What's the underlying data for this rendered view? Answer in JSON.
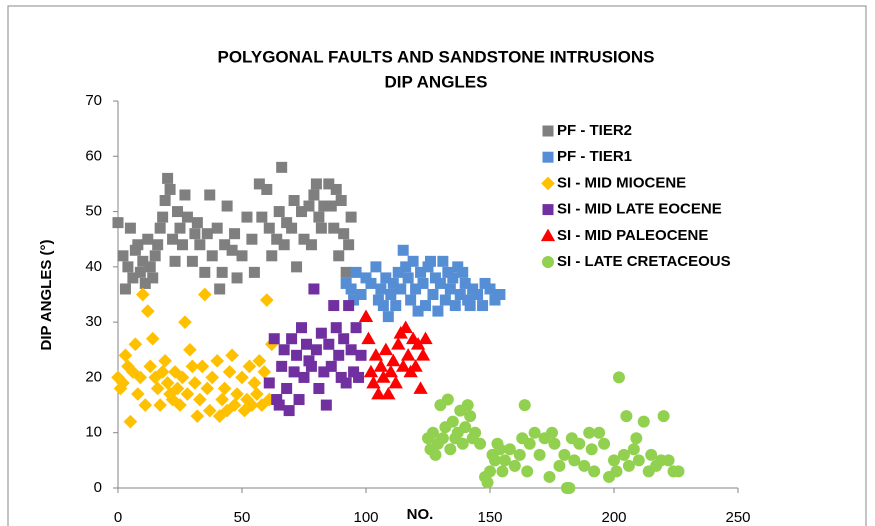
{
  "chart_data": {
    "type": "scatter",
    "title": [
      "POLYGONAL FAULTS AND SANDSTONE INTRUSIONS",
      "DIP ANGLES"
    ],
    "x_label": "NO.",
    "y_label": "DIP ANGLES (°)",
    "xlim": [
      0,
      250
    ],
    "xticks": [
      0,
      50,
      100,
      150,
      200,
      250
    ],
    "ylim": [
      0,
      70
    ],
    "yticks": [
      0,
      10,
      20,
      30,
      40,
      50,
      60,
      70
    ],
    "grid": false,
    "legend": "upper right",
    "series": [
      {
        "name": "PF - TIER2",
        "color": "#7f7f7f",
        "marker": "square",
        "points": [
          [
            0,
            48
          ],
          [
            2,
            42
          ],
          [
            3,
            36
          ],
          [
            4,
            40
          ],
          [
            5,
            47
          ],
          [
            6,
            38
          ],
          [
            7,
            43
          ],
          [
            8,
            44
          ],
          [
            9,
            39
          ],
          [
            10,
            41
          ],
          [
            11,
            37
          ],
          [
            12,
            45
          ],
          [
            13,
            40
          ],
          [
            14,
            38
          ],
          [
            15,
            42
          ],
          [
            16,
            44
          ],
          [
            17,
            47
          ],
          [
            18,
            49
          ],
          [
            19,
            52
          ],
          [
            20,
            56
          ],
          [
            21,
            54
          ],
          [
            22,
            45
          ],
          [
            23,
            41
          ],
          [
            24,
            50
          ],
          [
            25,
            47
          ],
          [
            26,
            44
          ],
          [
            27,
            53
          ],
          [
            28,
            49
          ],
          [
            30,
            41
          ],
          [
            31,
            46
          ],
          [
            32,
            48
          ],
          [
            33,
            44
          ],
          [
            35,
            39
          ],
          [
            36,
            46
          ],
          [
            37,
            53
          ],
          [
            38,
            42
          ],
          [
            40,
            47
          ],
          [
            41,
            36
          ],
          [
            42,
            39
          ],
          [
            43,
            44
          ],
          [
            44,
            51
          ],
          [
            46,
            43
          ],
          [
            47,
            46
          ],
          [
            48,
            38
          ],
          [
            50,
            42
          ],
          [
            52,
            49
          ],
          [
            54,
            45
          ],
          [
            55,
            39
          ],
          [
            57,
            55
          ],
          [
            58,
            49
          ],
          [
            60,
            54
          ],
          [
            61,
            47
          ],
          [
            62,
            42
          ],
          [
            64,
            45
          ],
          [
            65,
            50
          ],
          [
            66,
            58
          ],
          [
            67,
            44
          ],
          [
            68,
            48
          ],
          [
            70,
            47
          ],
          [
            71,
            52
          ],
          [
            72,
            40
          ],
          [
            74,
            50
          ],
          [
            75,
            45
          ],
          [
            77,
            51
          ],
          [
            78,
            44
          ],
          [
            79,
            53
          ],
          [
            80,
            55
          ],
          [
            81,
            49
          ],
          [
            82,
            47
          ],
          [
            83,
            51
          ],
          [
            85,
            55
          ],
          [
            86,
            51
          ],
          [
            87,
            47
          ],
          [
            88,
            54
          ],
          [
            89,
            42
          ],
          [
            90,
            52
          ],
          [
            91,
            46
          ],
          [
            92,
            39
          ],
          [
            93,
            44
          ],
          [
            94,
            49
          ]
        ]
      },
      {
        "name": "PF - TIER1",
        "color": "#558ed5",
        "marker": "square",
        "points": [
          [
            92,
            37
          ],
          [
            94,
            36
          ],
          [
            95,
            34
          ],
          [
            96,
            39
          ],
          [
            98,
            35
          ],
          [
            100,
            38
          ],
          [
            102,
            37
          ],
          [
            104,
            40
          ],
          [
            105,
            34
          ],
          [
            106,
            36
          ],
          [
            107,
            33
          ],
          [
            108,
            38
          ],
          [
            109,
            31
          ],
          [
            110,
            35
          ],
          [
            111,
            37
          ],
          [
            112,
            33
          ],
          [
            113,
            39
          ],
          [
            114,
            36
          ],
          [
            115,
            43
          ],
          [
            116,
            40
          ],
          [
            117,
            38
          ],
          [
            118,
            34
          ],
          [
            119,
            41
          ],
          [
            120,
            36
          ],
          [
            121,
            32
          ],
          [
            122,
            39
          ],
          [
            123,
            37
          ],
          [
            124,
            33
          ],
          [
            125,
            40
          ],
          [
            126,
            41
          ],
          [
            127,
            35
          ],
          [
            128,
            38
          ],
          [
            129,
            32
          ],
          [
            130,
            37
          ],
          [
            131,
            41
          ],
          [
            132,
            34
          ],
          [
            133,
            39
          ],
          [
            134,
            36
          ],
          [
            135,
            38
          ],
          [
            136,
            33
          ],
          [
            137,
            40
          ],
          [
            138,
            35
          ],
          [
            139,
            39
          ],
          [
            140,
            37
          ],
          [
            141,
            34
          ],
          [
            142,
            33
          ],
          [
            143,
            36
          ],
          [
            145,
            35
          ],
          [
            147,
            33
          ],
          [
            148,
            37
          ],
          [
            150,
            36
          ],
          [
            152,
            34
          ],
          [
            154,
            35
          ]
        ]
      },
      {
        "name": "SI - MID MIOCENE",
        "color": "#ffc000",
        "marker": "diamond",
        "points": [
          [
            0,
            20
          ],
          [
            1,
            18
          ],
          [
            2,
            19
          ],
          [
            3,
            24
          ],
          [
            4,
            22
          ],
          [
            5,
            12
          ],
          [
            6,
            21
          ],
          [
            7,
            26
          ],
          [
            8,
            17
          ],
          [
            9,
            20
          ],
          [
            10,
            35
          ],
          [
            11,
            15
          ],
          [
            12,
            32
          ],
          [
            13,
            22
          ],
          [
            14,
            27
          ],
          [
            15,
            20
          ],
          [
            16,
            18
          ],
          [
            17,
            15
          ],
          [
            18,
            21
          ],
          [
            19,
            23
          ],
          [
            20,
            19
          ],
          [
            21,
            17
          ],
          [
            22,
            16
          ],
          [
            23,
            21
          ],
          [
            24,
            18
          ],
          [
            25,
            15
          ],
          [
            26,
            20
          ],
          [
            27,
            30
          ],
          [
            28,
            17
          ],
          [
            29,
            25
          ],
          [
            30,
            22
          ],
          [
            31,
            19
          ],
          [
            32,
            13
          ],
          [
            33,
            16
          ],
          [
            34,
            22
          ],
          [
            35,
            35
          ],
          [
            36,
            18
          ],
          [
            37,
            14
          ],
          [
            38,
            20
          ],
          [
            40,
            23
          ],
          [
            41,
            13
          ],
          [
            42,
            16
          ],
          [
            43,
            18
          ],
          [
            44,
            14
          ],
          [
            45,
            21
          ],
          [
            46,
            24
          ],
          [
            47,
            15
          ],
          [
            48,
            17
          ],
          [
            50,
            20
          ],
          [
            51,
            14
          ],
          [
            52,
            16
          ],
          [
            53,
            22
          ],
          [
            54,
            15
          ],
          [
            55,
            19
          ],
          [
            56,
            17
          ],
          [
            57,
            23
          ],
          [
            58,
            15
          ],
          [
            59,
            21
          ],
          [
            60,
            34
          ],
          [
            61,
            16
          ],
          [
            62,
            26
          ]
        ]
      },
      {
        "name": "SI - MID LATE EOCENE",
        "color": "#7030a0",
        "marker": "square",
        "points": [
          [
            61,
            19
          ],
          [
            63,
            27
          ],
          [
            64,
            16
          ],
          [
            65,
            15
          ],
          [
            66,
            22
          ],
          [
            67,
            25
          ],
          [
            68,
            18
          ],
          [
            69,
            14
          ],
          [
            70,
            27
          ],
          [
            71,
            21
          ],
          [
            72,
            24
          ],
          [
            73,
            16
          ],
          [
            74,
            29
          ],
          [
            75,
            20
          ],
          [
            76,
            26
          ],
          [
            77,
            23
          ],
          [
            78,
            22
          ],
          [
            79,
            36
          ],
          [
            80,
            25
          ],
          [
            81,
            18
          ],
          [
            82,
            28
          ],
          [
            83,
            21
          ],
          [
            84,
            15
          ],
          [
            85,
            26
          ],
          [
            86,
            22
          ],
          [
            87,
            33
          ],
          [
            88,
            29
          ],
          [
            89,
            24
          ],
          [
            90,
            20
          ],
          [
            91,
            27
          ],
          [
            92,
            19
          ],
          [
            93,
            33
          ],
          [
            94,
            25
          ],
          [
            95,
            21
          ],
          [
            96,
            29
          ],
          [
            97,
            20
          ],
          [
            98,
            24
          ]
        ]
      },
      {
        "name": "SI - MID PALEOCENE",
        "color": "#ff0000",
        "marker": "triangle",
        "points": [
          [
            100,
            31
          ],
          [
            101,
            27
          ],
          [
            102,
            21
          ],
          [
            103,
            19
          ],
          [
            104,
            24
          ],
          [
            105,
            17
          ],
          [
            106,
            22
          ],
          [
            107,
            20
          ],
          [
            108,
            25
          ],
          [
            109,
            17
          ],
          [
            110,
            21
          ],
          [
            111,
            23
          ],
          [
            112,
            19
          ],
          [
            113,
            26
          ],
          [
            114,
            28
          ],
          [
            115,
            22
          ],
          [
            116,
            29
          ],
          [
            117,
            24
          ],
          [
            118,
            21
          ],
          [
            119,
            27
          ],
          [
            120,
            22
          ],
          [
            121,
            26
          ],
          [
            122,
            18
          ],
          [
            123,
            24
          ],
          [
            124,
            27
          ]
        ]
      },
      {
        "name": "SI - LATE CRETACEOUS",
        "color": "#92d050",
        "marker": "circle",
        "points": [
          [
            125,
            9
          ],
          [
            126,
            7
          ],
          [
            127,
            10
          ],
          [
            128,
            6
          ],
          [
            129,
            8
          ],
          [
            130,
            15
          ],
          [
            131,
            9
          ],
          [
            132,
            11
          ],
          [
            133,
            16
          ],
          [
            134,
            7
          ],
          [
            135,
            12
          ],
          [
            136,
            9
          ],
          [
            137,
            10
          ],
          [
            138,
            14
          ],
          [
            139,
            8
          ],
          [
            140,
            11
          ],
          [
            141,
            15
          ],
          [
            142,
            13
          ],
          [
            143,
            9
          ],
          [
            144,
            10
          ],
          [
            146,
            8
          ],
          [
            148,
            2
          ],
          [
            149,
            1
          ],
          [
            150,
            3
          ],
          [
            151,
            6
          ],
          [
            152,
            5
          ],
          [
            153,
            8
          ],
          [
            154,
            7
          ],
          [
            155,
            3
          ],
          [
            156,
            5
          ],
          [
            158,
            7
          ],
          [
            160,
            4
          ],
          [
            162,
            6
          ],
          [
            163,
            9
          ],
          [
            164,
            15
          ],
          [
            165,
            3
          ],
          [
            166,
            8
          ],
          [
            168,
            10
          ],
          [
            170,
            6
          ],
          [
            172,
            9
          ],
          [
            174,
            2
          ],
          [
            175,
            10
          ],
          [
            176,
            8
          ],
          [
            178,
            4
          ],
          [
            180,
            6
          ],
          [
            181,
            0
          ],
          [
            182,
            0
          ],
          [
            183,
            9
          ],
          [
            184,
            5
          ],
          [
            186,
            8
          ],
          [
            188,
            4
          ],
          [
            190,
            10
          ],
          [
            191,
            7
          ],
          [
            192,
            3
          ],
          [
            194,
            10
          ],
          [
            196,
            8
          ],
          [
            198,
            2
          ],
          [
            200,
            5
          ],
          [
            201,
            3
          ],
          [
            202,
            20
          ],
          [
            204,
            6
          ],
          [
            205,
            13
          ],
          [
            206,
            4
          ],
          [
            208,
            7
          ],
          [
            209,
            9
          ],
          [
            210,
            5
          ],
          [
            212,
            12
          ],
          [
            214,
            3
          ],
          [
            215,
            6
          ],
          [
            217,
            4
          ],
          [
            219,
            5
          ],
          [
            220,
            13
          ],
          [
            222,
            5
          ],
          [
            224,
            3
          ],
          [
            226,
            3
          ]
        ]
      }
    ]
  }
}
